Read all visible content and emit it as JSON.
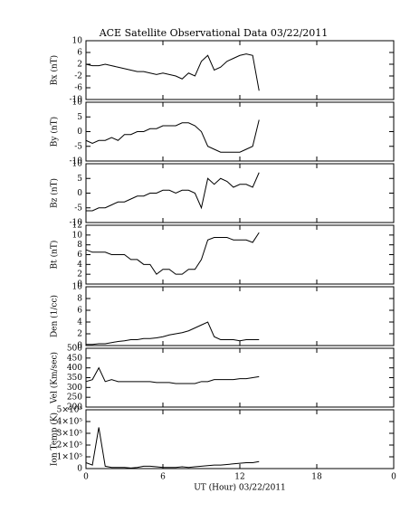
{
  "title": "ACE Satellite Observational Data   03/22/2011",
  "chart_data": [
    {
      "type": "line",
      "ylabel": "Bx (nT)",
      "xlim": [
        0,
        24
      ],
      "xticks": [
        0,
        6,
        12,
        18,
        {
          "value": 24,
          "label": "0"
        }
      ],
      "ylim": [
        -10,
        10
      ],
      "yticks": [
        -10,
        -6,
        -2,
        2,
        6,
        10
      ],
      "x": [
        0,
        0.5,
        1,
        1.5,
        2,
        2.5,
        3,
        3.5,
        4,
        4.5,
        5,
        5.5,
        6,
        6.5,
        7,
        7.5,
        8,
        8.5,
        9,
        9.5,
        10,
        10.5,
        11,
        11.5,
        12,
        12.5,
        13,
        13.5
      ],
      "series": [
        {
          "color": "#000000",
          "values": [
            2,
            1.5,
            1.5,
            2,
            1.5,
            1,
            0.5,
            0,
            -0.5,
            -0.5,
            -1,
            -1.5,
            -1,
            -1.5,
            -2,
            -3,
            -1,
            -2,
            3,
            5,
            0,
            1,
            3,
            4,
            5,
            5.5,
            5,
            -7
          ]
        }
      ]
    },
    {
      "type": "line",
      "ylabel": "By (nT)",
      "xlim": [
        0,
        24
      ],
      "xticks": [
        0,
        6,
        12,
        18,
        {
          "value": 24,
          "label": "0"
        }
      ],
      "ylim": [
        -10,
        10
      ],
      "yticks": [
        -10,
        -5,
        0,
        5,
        10
      ],
      "x": [
        0,
        0.5,
        1,
        1.5,
        2,
        2.5,
        3,
        3.5,
        4,
        4.5,
        5,
        5.5,
        6,
        6.5,
        7,
        7.5,
        8,
        8.5,
        9,
        9.5,
        10,
        10.5,
        11,
        11.5,
        12,
        12.5,
        13,
        13.5
      ],
      "series": [
        {
          "color": "#000000",
          "values": [
            -3,
            -4,
            -3,
            -3,
            -2,
            -3,
            -1,
            -1,
            0,
            0,
            1,
            1,
            2,
            2,
            2,
            3,
            3,
            2,
            0,
            -5,
            -6,
            -7,
            -7,
            -7,
            -7,
            -6,
            -5,
            4
          ]
        }
      ]
    },
    {
      "type": "line",
      "ylabel": "Bz (nT)",
      "xlim": [
        0,
        24
      ],
      "xticks": [
        0,
        6,
        12,
        18,
        {
          "value": 24,
          "label": "0"
        }
      ],
      "ylim": [
        -10,
        10
      ],
      "yticks": [
        -10,
        -5,
        0,
        5,
        10
      ],
      "x": [
        0,
        0.5,
        1,
        1.5,
        2,
        2.5,
        3,
        3.5,
        4,
        4.5,
        5,
        5.5,
        6,
        6.5,
        7,
        7.5,
        8,
        8.5,
        9,
        9.5,
        10,
        10.5,
        11,
        11.5,
        12,
        12.5,
        13,
        13.5
      ],
      "series": [
        {
          "color": "#000000",
          "values": [
            -6,
            -6,
            -5,
            -5,
            -4,
            -3,
            -3,
            -2,
            -1,
            -1,
            0,
            0,
            1,
            1,
            0,
            1,
            1,
            0,
            -5,
            5,
            3,
            5,
            4,
            2,
            3,
            3,
            2,
            7
          ]
        }
      ]
    },
    {
      "type": "line",
      "ylabel": "Bt (nT)",
      "xlim": [
        0,
        24
      ],
      "xticks": [
        0,
        6,
        12,
        18,
        {
          "value": 24,
          "label": "0"
        }
      ],
      "ylim": [
        0,
        12
      ],
      "yticks": [
        0,
        2,
        4,
        6,
        8,
        10,
        12
      ],
      "x": [
        0,
        0.5,
        1,
        1.5,
        2,
        2.5,
        3,
        3.5,
        4,
        4.5,
        5,
        5.5,
        6,
        6.5,
        7,
        7.5,
        8,
        8.5,
        9,
        9.5,
        10,
        10.5,
        11,
        11.5,
        12,
        12.5,
        13,
        13.5
      ],
      "series": [
        {
          "color": "#000000",
          "values": [
            7,
            6.5,
            6.5,
            6.5,
            6,
            6,
            6,
            5,
            5,
            4,
            4,
            2,
            3,
            3,
            2,
            2,
            3,
            3,
            5,
            9,
            9.5,
            9.5,
            9.5,
            9,
            9,
            9,
            8.5,
            10.5
          ]
        }
      ]
    },
    {
      "type": "line",
      "ylabel": "Den (1/cc)",
      "xlim": [
        0,
        24
      ],
      "xticks": [
        0,
        6,
        12,
        18,
        {
          "value": 24,
          "label": "0"
        }
      ],
      "ylim": [
        0,
        10
      ],
      "yticks": [
        0,
        2,
        4,
        6,
        8,
        10
      ],
      "x": [
        0,
        0.5,
        1,
        1.5,
        2,
        2.5,
        3,
        3.5,
        4,
        4.5,
        5,
        5.5,
        6,
        6.5,
        7,
        7.5,
        8,
        8.5,
        9,
        9.5,
        10,
        10.5,
        11,
        11.5,
        12,
        12.5,
        13,
        13.5
      ],
      "series": [
        {
          "color": "#000000",
          "values": [
            0.2,
            0.2,
            0.3,
            0.3,
            0.5,
            0.7,
            0.8,
            1,
            1,
            1.2,
            1.2,
            1.3,
            1.5,
            1.8,
            2,
            2.2,
            2.5,
            3,
            3.5,
            4,
            1.5,
            1,
            1,
            1,
            0.8,
            1,
            1,
            1
          ]
        }
      ]
    },
    {
      "type": "line",
      "ylabel": "Vel (Km/sec)",
      "xlim": [
        0,
        24
      ],
      "xticks": [
        0,
        6,
        12,
        18,
        {
          "value": 24,
          "label": "0"
        }
      ],
      "ylim": [
        200,
        500
      ],
      "yticks": [
        200,
        250,
        300,
        350,
        400,
        450,
        500
      ],
      "x": [
        0,
        0.5,
        1,
        1.5,
        2,
        2.5,
        3,
        3.5,
        4,
        4.5,
        5,
        5.5,
        6,
        6.5,
        7,
        7.5,
        8,
        8.5,
        9,
        9.5,
        10,
        10.5,
        11,
        11.5,
        12,
        12.5,
        13,
        13.5
      ],
      "series": [
        {
          "color": "#000000",
          "values": [
            330,
            340,
            400,
            330,
            340,
            330,
            330,
            330,
            330,
            330,
            330,
            325,
            325,
            325,
            320,
            320,
            320,
            320,
            330,
            330,
            340,
            340,
            340,
            340,
            345,
            345,
            350,
            355
          ]
        }
      ]
    },
    {
      "type": "line",
      "ylabel": "Ion Temp (K)",
      "xlabel": "UT (Hour)   03/22/2011",
      "xlim": [
        0,
        24
      ],
      "xticks": [
        0,
        6,
        12,
        18,
        {
          "value": 24,
          "label": "0"
        }
      ],
      "ylim": [
        0,
        500000
      ],
      "yticks": [
        0,
        {
          "value": 100000,
          "label": "1×10⁵"
        },
        {
          "value": 200000,
          "label": "2×10⁵"
        },
        {
          "value": 300000,
          "label": "3×10⁵"
        },
        {
          "value": 400000,
          "label": "4×10⁵"
        },
        {
          "value": 500000,
          "label": "5×10⁵"
        }
      ],
      "x": [
        0,
        0.5,
        1,
        1.5,
        2,
        2.5,
        3,
        3.5,
        4,
        4.5,
        5,
        5.5,
        6,
        6.5,
        7,
        7.5,
        8,
        8.5,
        9,
        9.5,
        10,
        10.5,
        11,
        11.5,
        12,
        12.5,
        13,
        13.5
      ],
      "series": [
        {
          "color": "#000000",
          "values": [
            50000,
            30000,
            350000,
            20000,
            10000,
            10000,
            10000,
            5000,
            10000,
            20000,
            20000,
            15000,
            10000,
            10000,
            10000,
            15000,
            10000,
            15000,
            20000,
            25000,
            30000,
            30000,
            35000,
            40000,
            45000,
            50000,
            50000,
            60000
          ]
        }
      ]
    }
  ]
}
